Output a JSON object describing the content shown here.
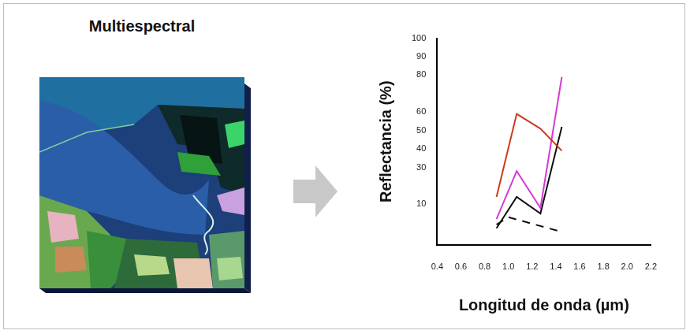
{
  "panel": {
    "title": "Multiespectral"
  },
  "chart_data": {
    "type": "line",
    "x_label": "Longitud de onda (µm)",
    "y_label": "Reflectancia (%)",
    "xlim": [
      0.4,
      2.2
    ],
    "xticks": [
      0.4,
      0.6,
      0.8,
      {
        "value": 1,
        "label": "1.0"
      },
      1.2,
      1.4,
      1.6,
      1.8,
      {
        "value": 2,
        "label": "2.0"
      },
      2.2
    ],
    "ylim": [
      -12,
      100
    ],
    "yticks": [
      10,
      30,
      40,
      50,
      60,
      80,
      90,
      100
    ],
    "grid": false,
    "series": [
      {
        "color": "#cc3a1e",
        "line_style": "solid",
        "x": [
          0.9,
          1.07,
          1.27,
          1.45
        ],
        "values": [
          14,
          59,
          51,
          39
        ]
      },
      {
        "color": "#d63ad6",
        "line_style": "solid",
        "x": [
          0.9,
          1.07,
          1.27,
          1.45
        ],
        "values": [
          2,
          28,
          8,
          79
        ]
      },
      {
        "color": "#111111",
        "line_style": "solid",
        "x": [
          0.9,
          1.07,
          1.27,
          1.45
        ],
        "values": [
          -3,
          14,
          5,
          52
        ]
      },
      {
        "color": "#111111",
        "line_style": "dashed",
        "x": [
          0.9,
          1.0,
          1.45
        ],
        "values": [
          -1,
          3,
          -5
        ]
      }
    ]
  }
}
